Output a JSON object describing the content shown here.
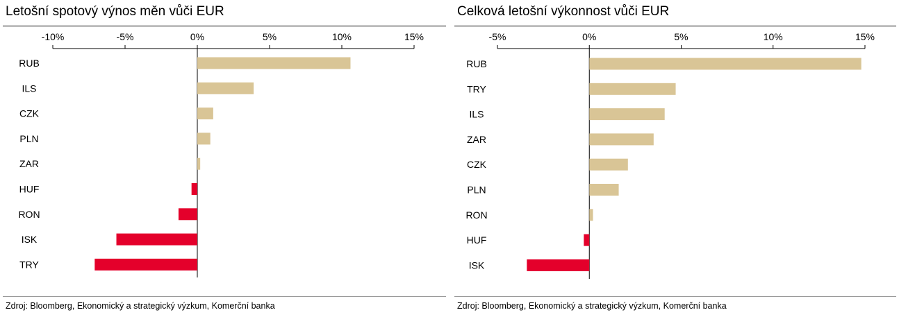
{
  "colors": {
    "positive": "#d9c596",
    "negative": "#e4002b",
    "axis": "#000000"
  },
  "charts": [
    {
      "title": "Letošní spotový výnos měn vůči EUR",
      "source": "Zdroj: Bloomberg, Ekonomický a strategický výzkum, Komerční banka",
      "chart_data": {
        "type": "bar",
        "orientation": "horizontal",
        "title": "Letošní spotový výnos měn vůči EUR",
        "xlim": [
          -10,
          15
        ],
        "xticks": [
          -10,
          -5,
          0,
          5,
          10,
          15
        ],
        "tick_labels": [
          "-10%",
          "-5%",
          "0%",
          "5%",
          "10%",
          "15%"
        ],
        "categories": [
          "RUB",
          "ILS",
          "CZK",
          "PLN",
          "ZAR",
          "HUF",
          "RON",
          "ISK",
          "TRY"
        ],
        "values": [
          10.6,
          3.9,
          1.1,
          0.9,
          0.2,
          -0.4,
          -1.3,
          -5.6,
          -7.1
        ],
        "grid": false
      }
    },
    {
      "title": "Celková letošní výkonnost vůči EUR",
      "source": "Zdroj: Bloomberg, Ekonomický a strategický výzkum, Komerční banka",
      "chart_data": {
        "type": "bar",
        "orientation": "horizontal",
        "title": "Celková letošní výkonnost vůči EUR",
        "xlim": [
          -5,
          15
        ],
        "xticks": [
          -5,
          0,
          5,
          10,
          15
        ],
        "tick_labels": [
          "-5%",
          "0%",
          "5%",
          "10%",
          "15%"
        ],
        "categories": [
          "RUB",
          "TRY",
          "ILS",
          "ZAR",
          "CZK",
          "PLN",
          "RON",
          "HUF",
          "ISK"
        ],
        "values": [
          14.8,
          4.7,
          4.1,
          3.5,
          2.1,
          1.6,
          0.2,
          -0.3,
          -3.4
        ],
        "grid": false
      }
    }
  ]
}
